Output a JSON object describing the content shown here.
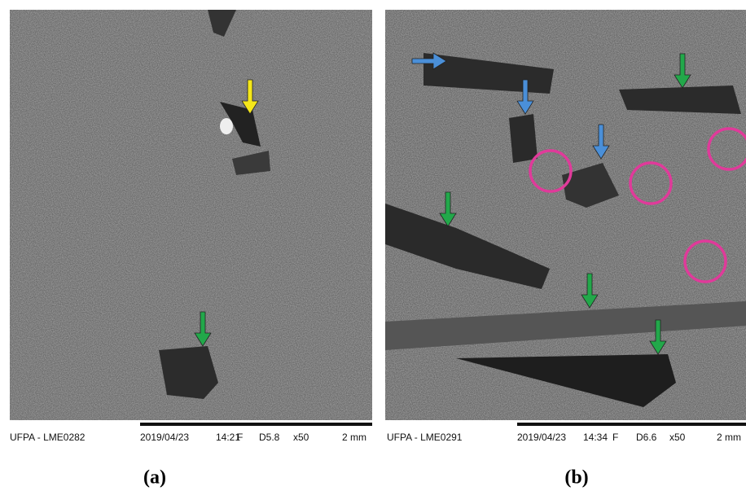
{
  "panels": [
    {
      "info": {
        "label": "UFPA - LME0282",
        "date": "2019/04/23",
        "time": "14:21",
        "mode": "F",
        "distance": "D5.8",
        "magnification": "x50",
        "scale": "2 mm"
      },
      "caption": "(a)"
    },
    {
      "info": {
        "label": "UFPA - LME0291",
        "date": "2019/04/23",
        "time": "14:34",
        "mode": "F",
        "distance": "D6.6",
        "magnification": "x50",
        "scale": "2 mm"
      },
      "caption": "(b)"
    }
  ]
}
